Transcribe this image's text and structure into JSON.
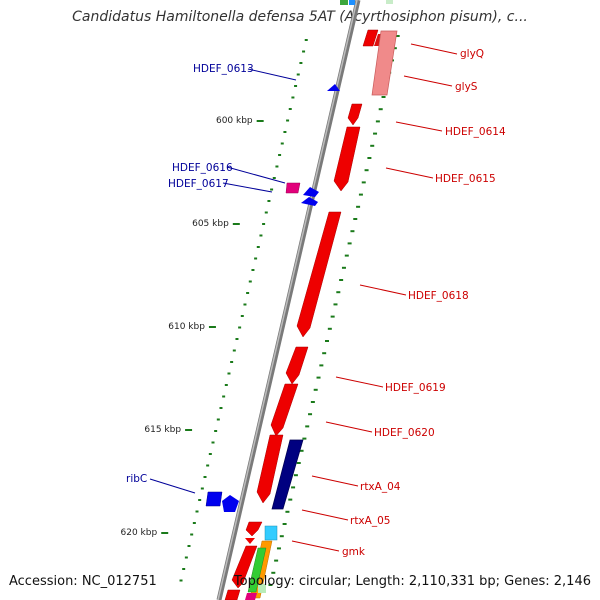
{
  "title": "Candidatus Hamiltonella defensa 5AT (Acyrthosiphon pisum), c...",
  "accession_text": "Accession: NC_012751",
  "summary_text": "Topology: circular; Length: 2,110,331 bp; Genes: 2,146",
  "colors": {
    "backbone": "#8c8c8c",
    "forward_gene": "#ee0000",
    "forward_rna": "#f08080",
    "reverse_gene": "#0000ee",
    "reverse_misc": "#e2007a",
    "rtx_gene": "#000080",
    "tick": "#1a7a1a",
    "forward_label": "#cc0000",
    "reverse_label": "#000099",
    "kbp_label": "#222222"
  },
  "kbp_ticks": [
    {
      "text": "600 kbp",
      "kbp": 600
    },
    {
      "text": "605 kbp",
      "kbp": 605
    },
    {
      "text": "610 kbp",
      "kbp": 610
    },
    {
      "text": "615 kbp",
      "kbp": 615
    },
    {
      "text": "620 kbp",
      "kbp": 620
    }
  ],
  "genes": [
    {
      "name": "glyQ",
      "strand": "forward",
      "kind": "gene",
      "label": "glyQ"
    },
    {
      "name": "glyS",
      "strand": "forward",
      "kind": "rna",
      "label": "glyS"
    },
    {
      "name": "HDEF_0613",
      "strand": "reverse",
      "kind": "gene",
      "label": "HDEF_0613"
    },
    {
      "name": "HDEF_0614",
      "strand": "forward",
      "kind": "gene",
      "label": "HDEF_0614"
    },
    {
      "name": "HDEF_0615",
      "strand": "forward",
      "kind": "gene",
      "label": "HDEF_0615"
    },
    {
      "name": "HDEF_0616",
      "strand": "reverse",
      "kind": "misc",
      "label": "HDEF_0616"
    },
    {
      "name": "HDEF_0617",
      "strand": "reverse",
      "kind": "gene",
      "label": "HDEF_0617"
    },
    {
      "name": "HDEF_0618",
      "strand": "forward",
      "kind": "gene",
      "label": "HDEF_0618"
    },
    {
      "name": "HDEF_0619",
      "strand": "forward",
      "kind": "gene",
      "label": "HDEF_0619"
    },
    {
      "name": "HDEF_0620",
      "strand": "forward",
      "kind": "gene",
      "label": "HDEF_0620"
    },
    {
      "name": "rtxA_04",
      "strand": "forward",
      "kind": "rtx",
      "label": "rtxA_04"
    },
    {
      "name": "rtxA_05",
      "strand": "forward",
      "kind": "gene",
      "label": "rtxA_05"
    },
    {
      "name": "ribC",
      "strand": "reverse",
      "kind": "gene",
      "label": "ribC"
    },
    {
      "name": "gmk",
      "strand": "forward",
      "kind": "gene",
      "label": "gmk"
    }
  ]
}
